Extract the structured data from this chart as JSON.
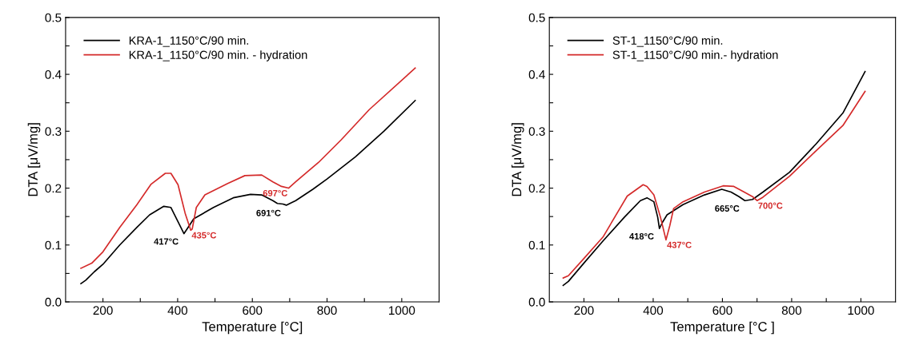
{
  "chart_data": [
    {
      "type": "line",
      "xlabel": "Temperature [°C]",
      "ylabel": "DTA [μV/mg]",
      "xlim": [
        100,
        1100
      ],
      "ylim": [
        0,
        0.5
      ],
      "xticks": [
        200,
        {
          "value": 300,
          "label": null
        },
        400,
        {
          "value": 500,
          "label": null
        },
        600,
        {
          "value": 700,
          "label": null
        },
        800,
        {
          "value": 900,
          "label": null
        },
        1000
      ],
      "yticks": [
        "0.0",
        {
          "value": 0.05,
          "label": null
        },
        0.1,
        {
          "value": 0.15,
          "label": null
        },
        0.2,
        {
          "value": 0.25,
          "label": null
        },
        0.3,
        {
          "value": 0.35,
          "label": null
        },
        0.4,
        {
          "value": 0.45,
          "label": null
        },
        0.5
      ],
      "grid": false,
      "legend": "top left",
      "marker": "none",
      "line_style": "solid",
      "series": [
        {
          "name": "KRA-1_1150°C/90 min.",
          "color": "#000000",
          "x": [
            141,
            154,
            177,
            200,
            245,
            291,
            325,
            363,
            382,
            401,
            417,
            428,
            443,
            496,
            549,
            595,
            625,
            655,
            667,
            682,
            691,
            716,
            762,
            800,
            876,
            952,
            1036
          ],
          "values": [
            0.032,
            0.038,
            0.053,
            0.066,
            0.1,
            0.131,
            0.153,
            0.168,
            0.166,
            0.141,
            0.12,
            0.131,
            0.146,
            0.166,
            0.183,
            0.189,
            0.188,
            0.178,
            0.173,
            0.172,
            0.17,
            0.178,
            0.198,
            0.216,
            0.255,
            0.3,
            0.354
          ]
        },
        {
          "name": "KRA-1_1150°C/90 min. - hydration",
          "color": "#d42a2a",
          "x": [
            141,
            170,
            200,
            245,
            291,
            329,
            367,
            382,
            401,
            420,
            435,
            439,
            450,
            473,
            534,
            580,
            625,
            655,
            678,
            697,
            716,
            777,
            838,
            913,
            1036
          ],
          "values": [
            0.059,
            0.068,
            0.088,
            0.131,
            0.171,
            0.207,
            0.226,
            0.226,
            0.206,
            0.156,
            0.126,
            0.128,
            0.166,
            0.188,
            0.208,
            0.222,
            0.223,
            0.211,
            0.203,
            0.2,
            0.211,
            0.245,
            0.285,
            0.338,
            0.411
          ]
        }
      ],
      "annotations": [
        {
          "text": "417°C",
          "x": 417,
          "y": 0.12
        },
        {
          "text": "435°C",
          "x": 435,
          "y": 0.126
        },
        {
          "text": "691°C",
          "x": 691,
          "y": 0.17
        },
        {
          "text": "697°C",
          "x": 697,
          "y": 0.2
        }
      ]
    },
    {
      "type": "line",
      "xlabel": "Temperature [°C ]",
      "ylabel": "DTA [μV/mg]",
      "xlim": [
        100,
        1100
      ],
      "ylim": [
        0,
        0.5
      ],
      "xticks": [
        200,
        {
          "value": 300,
          "label": null
        },
        400,
        {
          "value": 500,
          "label": null
        },
        600,
        {
          "value": 700,
          "label": null
        },
        800,
        {
          "value": 900,
          "label": null
        },
        1000
      ],
      "yticks": [
        "0.0",
        {
          "value": 0.05,
          "label": null
        },
        0.1,
        {
          "value": 0.15,
          "label": null
        },
        0.2,
        {
          "value": 0.25,
          "label": null
        },
        0.3,
        {
          "value": 0.35,
          "label": null
        },
        0.4,
        {
          "value": 0.45,
          "label": null
        },
        0.5
      ],
      "grid": false,
      "legend": "top left",
      "marker": "none",
      "line_style": "solid",
      "series": [
        {
          "name": "ST-1_1150°C/90 min.",
          "color": "#000000",
          "x": [
            140,
            155,
            201,
            255,
            317,
            363,
            382,
            402,
            413,
            418,
            426,
            440,
            486,
            548,
            598,
            625,
            648,
            665,
            687,
            717,
            794,
            871,
            948,
            1012
          ],
          "values": [
            0.029,
            0.036,
            0.069,
            0.107,
            0.149,
            0.178,
            0.183,
            0.176,
            0.149,
            0.129,
            0.139,
            0.153,
            0.171,
            0.188,
            0.198,
            0.193,
            0.185,
            0.178,
            0.18,
            0.193,
            0.228,
            0.278,
            0.332,
            0.405
          ]
        },
        {
          "name": "ST-1_1150°C/90 min.- hydration",
          "color": "#d42a2a",
          "x": [
            140,
            155,
            201,
            255,
            325,
            371,
            382,
            402,
            421,
            437,
            448,
            459,
            486,
            548,
            602,
            633,
            663,
            687,
            700,
            717,
            794,
            871,
            948,
            1012
          ],
          "values": [
            0.042,
            0.046,
            0.077,
            0.114,
            0.186,
            0.206,
            0.203,
            0.188,
            0.149,
            0.109,
            0.134,
            0.164,
            0.176,
            0.193,
            0.204,
            0.203,
            0.193,
            0.185,
            0.178,
            0.184,
            0.221,
            0.266,
            0.31,
            0.37
          ]
        }
      ],
      "annotations": [
        {
          "text": "418°C",
          "x": 418,
          "y": 0.129
        },
        {
          "text": "437°C",
          "x": 437,
          "y": 0.109
        },
        {
          "text": "665°C",
          "x": 665,
          "y": 0.178
        },
        {
          "text": "700°C",
          "x": 700,
          "y": 0.178
        }
      ]
    }
  ]
}
